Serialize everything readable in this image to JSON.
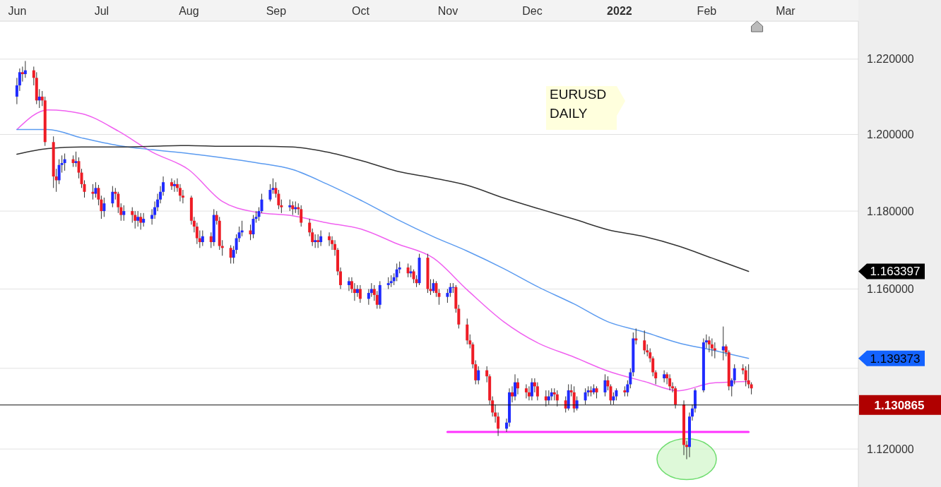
{
  "chart_data": {
    "type": "candlestick",
    "log": "y",
    "grid": "y",
    "annotations": [
      "EURUSD",
      "DAILY",
      "1.163397",
      "1.139373"
    ],
    "ref_lines": [
      {
        "axis": "y",
        "value": 1.130865,
        "label": "1.130865",
        "color": "#111111"
      }
    ],
    "xlim": [
      "2021-05-26",
      "2022-03-27"
    ],
    "xticks": [
      {
        "value": "2021-06-01",
        "label": "Jun"
      },
      {
        "value": "2021-07-01",
        "label": "Jul"
      },
      {
        "value": "2021-08-01",
        "label": "Aug"
      },
      {
        "value": "2021-09-01",
        "label": "Sep"
      },
      {
        "value": "2021-10-01",
        "label": "Oct"
      },
      {
        "value": "2021-11-01",
        "label": "Nov"
      },
      {
        "value": "2021-12-01",
        "label": "Dec"
      },
      {
        "value": "2022-01-01",
        "label": "2022"
      },
      {
        "value": "2022-02-01",
        "label": "Feb"
      },
      {
        "value": "2022-03-01",
        "label": "Mar"
      }
    ],
    "ylim": [
      1.1107,
      1.2302
    ],
    "yticks": [
      {
        "value": 1.12,
        "label": "1.120000"
      },
      {
        "value": 1.14,
        "label": null
      },
      {
        "value": 1.16,
        "label": "1.160000"
      },
      {
        "value": 1.18,
        "label": "1.180000"
      },
      {
        "value": 1.2,
        "label": "1.200000"
      },
      {
        "value": 1.22,
        "label": "1.220000"
      }
    ],
    "x": [
      "2021-06-01",
      "2021-06-02",
      "2021-06-03",
      "2021-06-04",
      "2021-06-07",
      "2021-06-08",
      "2021-06-09",
      "2021-06-10",
      "2021-06-11",
      "2021-06-14",
      "2021-06-15",
      "2021-06-16",
      "2021-06-17",
      "2021-06-18",
      "2021-06-21",
      "2021-06-22",
      "2021-06-23",
      "2021-06-24",
      "2021-06-25",
      "2021-06-28",
      "2021-06-29",
      "2021-06-30",
      "2021-07-01",
      "2021-07-02",
      "2021-07-05",
      "2021-07-06",
      "2021-07-07",
      "2021-07-08",
      "2021-07-09",
      "2021-07-12",
      "2021-07-13",
      "2021-07-14",
      "2021-07-15",
      "2021-07-16",
      "2021-07-19",
      "2021-07-20",
      "2021-07-21",
      "2021-07-22",
      "2021-07-23",
      "2021-07-26",
      "2021-07-27",
      "2021-07-28",
      "2021-07-29",
      "2021-07-30",
      "2021-08-02",
      "2021-08-03",
      "2021-08-04",
      "2021-08-05",
      "2021-08-06",
      "2021-08-09",
      "2021-08-10",
      "2021-08-11",
      "2021-08-12",
      "2021-08-13",
      "2021-08-16",
      "2021-08-17",
      "2021-08-18",
      "2021-08-19",
      "2021-08-20",
      "2021-08-23",
      "2021-08-24",
      "2021-08-25",
      "2021-08-26",
      "2021-08-27",
      "2021-08-30",
      "2021-08-31",
      "2021-09-01",
      "2021-09-02",
      "2021-09-03",
      "2021-09-06",
      "2021-09-07",
      "2021-09-08",
      "2021-09-09",
      "2021-09-10",
      "2021-09-13",
      "2021-09-14",
      "2021-09-15",
      "2021-09-16",
      "2021-09-17",
      "2021-09-20",
      "2021-09-21",
      "2021-09-22",
      "2021-09-23",
      "2021-09-24",
      "2021-09-27",
      "2021-09-28",
      "2021-09-29",
      "2021-09-30",
      "2021-10-01",
      "2021-10-04",
      "2021-10-05",
      "2021-10-06",
      "2021-10-07",
      "2021-10-08",
      "2021-10-11",
      "2021-10-12",
      "2021-10-13",
      "2021-10-14",
      "2021-10-15",
      "2021-10-18",
      "2021-10-19",
      "2021-10-20",
      "2021-10-21",
      "2021-10-22",
      "2021-10-25",
      "2021-10-26",
      "2021-10-27",
      "2021-10-28",
      "2021-10-29",
      "2021-11-01",
      "2021-11-02",
      "2021-11-03",
      "2021-11-04",
      "2021-11-05",
      "2021-11-08",
      "2021-11-09",
      "2021-11-10",
      "2021-11-11",
      "2021-11-12",
      "2021-11-15",
      "2021-11-16",
      "2021-11-17",
      "2021-11-18",
      "2021-11-19",
      "2021-11-22",
      "2021-11-23",
      "2021-11-24",
      "2021-11-25",
      "2021-11-26",
      "2021-11-29",
      "2021-11-30",
      "2021-12-01",
      "2021-12-02",
      "2021-12-03",
      "2021-12-06",
      "2021-12-07",
      "2021-12-08",
      "2021-12-09",
      "2021-12-10",
      "2021-12-13",
      "2021-12-14",
      "2021-12-15",
      "2021-12-16",
      "2021-12-17",
      "2021-12-20",
      "2021-12-21",
      "2021-12-22",
      "2021-12-23",
      "2021-12-24",
      "2021-12-27",
      "2021-12-28",
      "2021-12-29",
      "2021-12-30",
      "2021-12-31",
      "2022-01-03",
      "2022-01-04",
      "2022-01-05",
      "2022-01-06",
      "2022-01-07",
      "2022-01-10",
      "2022-01-11",
      "2022-01-12",
      "2022-01-13",
      "2022-01-14",
      "2022-01-17",
      "2022-01-18",
      "2022-01-19",
      "2022-01-20",
      "2022-01-21",
      "2022-01-24",
      "2022-01-25",
      "2022-01-26",
      "2022-01-27",
      "2022-01-28",
      "2022-01-31",
      "2022-02-01",
      "2022-02-02",
      "2022-02-03",
      "2022-02-04",
      "2022-02-07",
      "2022-02-08",
      "2022-02-09",
      "2022-02-10",
      "2022-02-11",
      "2022-02-14",
      "2022-02-15",
      "2022-02-16",
      "2022-02-17"
    ],
    "ohlc": [
      [
        1.21,
        1.215,
        1.208,
        1.213
      ],
      [
        1.213,
        1.2175,
        1.2115,
        1.2165
      ],
      [
        1.2165,
        1.218,
        1.214,
        1.216
      ],
      [
        1.216,
        1.2195,
        1.215,
        1.217
      ],
      [
        1.217,
        1.218,
        1.213,
        1.215
      ],
      [
        1.215,
        1.2165,
        1.208,
        1.209
      ],
      [
        1.209,
        1.212,
        1.207,
        1.21
      ],
      [
        1.21,
        1.2115,
        1.2075,
        1.209
      ],
      [
        1.209,
        1.21,
        1.197,
        1.198
      ],
      [
        1.198,
        1.1995,
        1.186,
        1.189
      ],
      [
        1.189,
        1.191,
        1.185,
        1.188
      ],
      [
        1.188,
        1.1935,
        1.187,
        1.192
      ],
      [
        1.192,
        1.1945,
        1.19,
        1.1925
      ],
      [
        1.1925,
        1.195,
        1.1905,
        1.1935
      ],
      [
        1.1935,
        1.1945,
        1.1915,
        1.1925
      ],
      [
        1.1925,
        1.1955,
        1.1915,
        1.193
      ],
      [
        1.193,
        1.194,
        1.1885,
        1.19
      ],
      [
        1.19,
        1.191,
        1.186,
        1.187
      ],
      [
        1.187,
        1.188,
        1.1835,
        1.185
      ],
      [
        1.185,
        1.187,
        1.183,
        1.1845
      ],
      [
        1.1845,
        1.1875,
        1.1835,
        1.186
      ],
      [
        1.186,
        1.1868,
        1.1815,
        1.183
      ],
      [
        1.183,
        1.184,
        1.178,
        1.18
      ],
      [
        1.18,
        1.1835,
        1.1785,
        1.182
      ],
      [
        1.182,
        1.1865,
        1.181,
        1.185
      ],
      [
        1.185,
        1.186,
        1.183,
        1.1845
      ],
      [
        1.1845,
        1.185,
        1.1795,
        1.181
      ],
      [
        1.181,
        1.182,
        1.1775,
        1.179
      ],
      [
        1.179,
        1.1815,
        1.1775,
        1.18
      ],
      [
        1.18,
        1.181,
        1.177,
        1.179
      ],
      [
        1.179,
        1.18,
        1.1755,
        1.1775
      ],
      [
        1.1775,
        1.18,
        1.176,
        1.1785
      ],
      [
        1.1785,
        1.1795,
        1.1752,
        1.177
      ],
      [
        1.177,
        1.1795,
        1.176,
        1.178
      ],
      [
        1.178,
        1.1805,
        1.1765,
        1.179
      ],
      [
        1.179,
        1.1825,
        1.178,
        1.181
      ],
      [
        1.181,
        1.1845,
        1.18,
        1.183
      ],
      [
        1.183,
        1.1865,
        1.182,
        1.185
      ],
      [
        1.185,
        1.189,
        1.184,
        1.1875
      ],
      [
        1.1875,
        1.1885,
        1.1855,
        1.1865
      ],
      [
        1.1865,
        1.188,
        1.185,
        1.187
      ],
      [
        1.187,
        1.1885,
        1.185,
        1.186
      ],
      [
        1.186,
        1.187,
        1.1825,
        1.184
      ],
      [
        1.184,
        1.1855,
        1.182,
        1.1835
      ],
      [
        1.1835,
        1.184,
        1.1765,
        1.1775
      ],
      [
        1.1775,
        1.1785,
        1.1745,
        1.176
      ],
      [
        1.176,
        1.177,
        1.1715,
        1.173
      ],
      [
        1.173,
        1.175,
        1.1705,
        1.172
      ],
      [
        1.172,
        1.175,
        1.171,
        1.1735
      ],
      [
        1.1735,
        1.1745,
        1.1705,
        1.172
      ],
      [
        1.172,
        1.1805,
        1.171,
        1.179
      ],
      [
        1.179,
        1.18,
        1.1765,
        1.1775
      ],
      [
        1.1775,
        1.1785,
        1.17,
        1.171
      ],
      [
        1.171,
        1.1725,
        1.1685,
        1.1705
      ],
      [
        1.1705,
        1.1712,
        1.1665,
        1.168
      ],
      [
        1.168,
        1.171,
        1.1665,
        1.17
      ],
      [
        1.17,
        1.174,
        1.169,
        1.173
      ],
      [
        1.173,
        1.176,
        1.172,
        1.1745
      ],
      [
        1.1745,
        1.1775,
        1.1735,
        1.175
      ],
      [
        1.175,
        1.1765,
        1.1725,
        1.174
      ],
      [
        1.174,
        1.179,
        1.173,
        1.178
      ],
      [
        1.178,
        1.18,
        1.177,
        1.1785
      ],
      [
        1.1785,
        1.181,
        1.1775,
        1.18
      ],
      [
        1.18,
        1.1845,
        1.1795,
        1.183
      ],
      [
        1.183,
        1.187,
        1.1825,
        1.1855
      ],
      [
        1.1855,
        1.1885,
        1.1845,
        1.186
      ],
      [
        1.186,
        1.1875,
        1.1835,
        1.1845
      ],
      [
        1.1845,
        1.1855,
        1.1805,
        1.1815
      ],
      [
        1.1815,
        1.183,
        1.1795,
        1.181
      ],
      [
        1.181,
        1.183,
        1.18,
        1.1815
      ],
      [
        1.1815,
        1.1825,
        1.179,
        1.1805
      ],
      [
        1.1805,
        1.1825,
        1.1795,
        1.181
      ],
      [
        1.181,
        1.182,
        1.179,
        1.1805
      ],
      [
        1.1805,
        1.1815,
        1.176,
        1.177
      ],
      [
        1.177,
        1.178,
        1.1735,
        1.1745
      ],
      [
        1.1745,
        1.1755,
        1.171,
        1.172
      ],
      [
        1.172,
        1.174,
        1.1705,
        1.1725
      ],
      [
        1.1725,
        1.174,
        1.1705,
        1.172
      ],
      [
        1.172,
        1.175,
        1.171,
        1.1735
      ],
      [
        1.1735,
        1.1745,
        1.171,
        1.1725
      ],
      [
        1.1725,
        1.1735,
        1.17,
        1.1715
      ],
      [
        1.1715,
        1.1725,
        1.1685,
        1.17
      ],
      [
        1.17,
        1.1705,
        1.1635,
        1.1645
      ],
      [
        1.1645,
        1.1655,
        1.16,
        1.161
      ],
      [
        1.161,
        1.163,
        1.1595,
        1.162
      ],
      [
        1.162,
        1.163,
        1.159,
        1.16
      ],
      [
        1.16,
        1.1615,
        1.157,
        1.159
      ],
      [
        1.159,
        1.161,
        1.158,
        1.16
      ],
      [
        1.16,
        1.161,
        1.1565,
        1.1575
      ],
      [
        1.1575,
        1.16,
        1.156,
        1.159
      ],
      [
        1.159,
        1.1615,
        1.158,
        1.16
      ],
      [
        1.16,
        1.161,
        1.157,
        1.1585
      ],
      [
        1.1585,
        1.1595,
        1.155,
        1.156
      ],
      [
        1.156,
        1.162,
        1.155,
        1.161
      ],
      [
        1.161,
        1.163,
        1.16,
        1.1615
      ],
      [
        1.1615,
        1.1635,
        1.1605,
        1.162
      ],
      [
        1.162,
        1.164,
        1.161,
        1.163
      ],
      [
        1.163,
        1.1665,
        1.162,
        1.165
      ],
      [
        1.165,
        1.167,
        1.164,
        1.1655
      ],
      [
        1.1655,
        1.1665,
        1.163,
        1.164
      ],
      [
        1.164,
        1.166,
        1.163,
        1.1645
      ],
      [
        1.1645,
        1.165,
        1.1615,
        1.1625
      ],
      [
        1.1625,
        1.1635,
        1.1605,
        1.1615
      ],
      [
        1.1615,
        1.169,
        1.161,
        1.168
      ],
      [
        1.168,
        1.169,
        1.159,
        1.16
      ],
      [
        1.16,
        1.1625,
        1.1585,
        1.1595
      ],
      [
        1.1595,
        1.1625,
        1.159,
        1.1615
      ],
      [
        1.1615,
        1.162,
        1.158,
        1.159
      ],
      [
        1.159,
        1.16,
        1.156,
        1.158
      ],
      [
        1.158,
        1.16,
        1.1565,
        1.159
      ],
      [
        1.159,
        1.1615,
        1.158,
        1.1605
      ],
      [
        1.1605,
        1.1615,
        1.159,
        1.1605
      ],
      [
        1.1605,
        1.161,
        1.154,
        1.155
      ],
      [
        1.155,
        1.156,
        1.15,
        1.151
      ],
      [
        1.151,
        1.1525,
        1.146,
        1.147
      ],
      [
        1.147,
        1.1485,
        1.145,
        1.146
      ],
      [
        1.146,
        1.1465,
        1.14,
        1.141
      ],
      [
        1.141,
        1.142,
        1.136,
        1.137
      ],
      [
        1.137,
        1.1405,
        1.136,
        1.1395
      ],
      [
        1.1395,
        1.1405,
        1.1365,
        1.138
      ],
      [
        1.138,
        1.1385,
        1.131,
        1.132
      ],
      [
        1.132,
        1.133,
        1.128,
        1.129
      ],
      [
        1.129,
        1.131,
        1.1265,
        1.128
      ],
      [
        1.128,
        1.129,
        1.1232,
        1.125
      ],
      [
        1.125,
        1.1275,
        1.1242,
        1.1265
      ],
      [
        1.1265,
        1.135,
        1.1255,
        1.134
      ],
      [
        1.134,
        1.1355,
        1.1315,
        1.133
      ],
      [
        1.133,
        1.1385,
        1.132,
        1.1365
      ],
      [
        1.1365,
        1.1375,
        1.1335,
        1.135
      ],
      [
        1.135,
        1.136,
        1.1325,
        1.134
      ],
      [
        1.134,
        1.1355,
        1.132,
        1.133
      ],
      [
        1.133,
        1.1375,
        1.132,
        1.1365
      ],
      [
        1.1365,
        1.1375,
        1.134,
        1.1355
      ],
      [
        1.1355,
        1.1365,
        1.132,
        1.133
      ],
      [
        1.133,
        1.1345,
        1.1305,
        1.132
      ],
      [
        1.132,
        1.1345,
        1.131,
        1.133
      ],
      [
        1.133,
        1.135,
        1.132,
        1.134
      ],
      [
        1.134,
        1.135,
        1.132,
        1.1335
      ],
      [
        1.1335,
        1.1345,
        1.1305,
        1.132
      ],
      [
        1.132,
        1.133,
        1.129,
        1.13
      ],
      [
        1.13,
        1.136,
        1.1295,
        1.1345
      ],
      [
        1.1345,
        1.136,
        1.133,
        1.134
      ],
      [
        1.134,
        1.1355,
        1.129,
        1.13
      ],
      [
        1.13,
        1.133,
        1.1295,
        1.132
      ],
      [
        1.132,
        1.135,
        1.131,
        1.134
      ],
      [
        1.134,
        1.1355,
        1.133,
        1.1345
      ],
      [
        1.1345,
        1.1355,
        1.133,
        1.134
      ],
      [
        1.134,
        1.136,
        1.1335,
        1.135
      ],
      [
        1.135,
        1.1355,
        1.1325,
        1.134
      ],
      [
        1.134,
        1.1385,
        1.133,
        1.137
      ],
      [
        1.137,
        1.138,
        1.1345,
        1.1355
      ],
      [
        1.1355,
        1.136,
        1.131,
        1.132
      ],
      [
        1.132,
        1.134,
        1.131,
        1.133
      ],
      [
        1.133,
        1.135,
        1.132,
        1.1345
      ],
      [
        1.1345,
        1.1355,
        1.133,
        1.134
      ],
      [
        1.134,
        1.137,
        1.133,
        1.136
      ],
      [
        1.136,
        1.14,
        1.135,
        1.139
      ],
      [
        1.139,
        1.149,
        1.138,
        1.1475
      ],
      [
        1.1475,
        1.15,
        1.146,
        1.147
      ],
      [
        1.147,
        1.1495,
        1.1435,
        1.1445
      ],
      [
        1.1445,
        1.146,
        1.143,
        1.144
      ],
      [
        1.144,
        1.145,
        1.1415,
        1.1425
      ],
      [
        1.1425,
        1.143,
        1.138,
        1.139
      ],
      [
        1.139,
        1.1395,
        1.136,
        1.1375
      ],
      [
        1.1375,
        1.1395,
        1.1365,
        1.1385
      ],
      [
        1.1385,
        1.139,
        1.136,
        1.1375
      ],
      [
        1.1375,
        1.1385,
        1.1345,
        1.1355
      ],
      [
        1.1355,
        1.1365,
        1.134,
        1.135
      ],
      [
        1.135,
        1.1355,
        1.13,
        1.131
      ],
      [
        1.131,
        1.132,
        1.1185,
        1.121
      ],
      [
        1.121,
        1.122,
        1.1175,
        1.1205
      ],
      [
        1.1205,
        1.129,
        1.118,
        1.128
      ],
      [
        1.128,
        1.131,
        1.127,
        1.13
      ],
      [
        1.13,
        1.135,
        1.129,
        1.1345
      ],
      [
        1.1345,
        1.1475,
        1.134,
        1.1465
      ],
      [
        1.1465,
        1.1485,
        1.145,
        1.147
      ],
      [
        1.147,
        1.148,
        1.144,
        1.146
      ],
      [
        1.146,
        1.1475,
        1.143,
        1.145
      ],
      [
        1.145,
        1.1465,
        1.1425,
        1.1445
      ],
      [
        1.1445,
        1.1505,
        1.142,
        1.1455
      ],
      [
        1.1455,
        1.146,
        1.143,
        1.144
      ],
      [
        1.144,
        1.1445,
        1.1345,
        1.1355
      ],
      [
        1.1355,
        1.1375,
        1.133,
        1.137
      ],
      [
        1.137,
        1.141,
        1.136,
        1.14
      ],
      [
        1.14,
        1.141,
        1.1385,
        1.1395
      ],
      [
        1.1395,
        1.1405,
        1.1355,
        1.137
      ],
      [
        1.137,
        1.141,
        1.135,
        1.136
      ],
      [
        1.136,
        1.1365,
        1.1335,
        1.135
      ]
    ],
    "series": [
      {
        "type": "line",
        "color": "#f060f0",
        "x": [
          "2021-06-01",
          "2021-06-12",
          "2021-06-24",
          "2021-07-07",
          "2021-07-19",
          "2021-08-01",
          "2021-08-13",
          "2021-08-25",
          "2021-09-07",
          "2021-09-19",
          "2021-10-02",
          "2021-10-14",
          "2021-10-27",
          "2021-11-08",
          "2021-11-21",
          "2021-12-03",
          "2021-12-16",
          "2021-12-28",
          "2022-01-10",
          "2022-01-22",
          "2022-02-03",
          "2022-02-16"
        ],
        "values": [
          1.2013,
          1.2065,
          1.2055,
          1.2009,
          1.1954,
          1.1908,
          1.1825,
          1.1797,
          1.1788,
          1.177,
          1.1752,
          1.1716,
          1.1679,
          1.1598,
          1.1517,
          1.1464,
          1.1428,
          1.1393,
          1.1367,
          1.1344,
          1.1363,
          1.1367
        ]
      },
      {
        "type": "line",
        "color": "#5b9bf0",
        "x": [
          "2021-06-01",
          "2021-06-12",
          "2021-06-24",
          "2021-07-07",
          "2021-07-19",
          "2021-08-01",
          "2021-08-13",
          "2021-08-25",
          "2021-09-07",
          "2021-09-19",
          "2021-10-02",
          "2021-10-14",
          "2021-10-27",
          "2021-11-08",
          "2021-11-21",
          "2021-12-03",
          "2021-12-16",
          "2021-12-28",
          "2022-01-10",
          "2022-01-22",
          "2022-02-03",
          "2022-02-16"
        ],
        "values": [
          1.2013,
          1.2013,
          1.1991,
          1.1971,
          1.196,
          1.195,
          1.1939,
          1.1926,
          1.1908,
          1.1871,
          1.1825,
          1.1779,
          1.1734,
          1.1697,
          1.1652,
          1.1606,
          1.1562,
          1.1517,
          1.1491,
          1.1464,
          1.1446,
          1.1425
        ]
      },
      {
        "type": "line",
        "color": "#333333",
        "x": [
          "2021-06-01",
          "2021-06-12",
          "2021-06-24",
          "2021-07-07",
          "2021-07-19",
          "2021-08-01",
          "2021-08-13",
          "2021-08-25",
          "2021-09-07",
          "2021-09-19",
          "2021-10-02",
          "2021-10-14",
          "2021-10-27",
          "2021-11-08",
          "2021-11-21",
          "2021-12-03",
          "2021-12-16",
          "2021-12-28",
          "2022-01-10",
          "2022-01-22",
          "2022-02-03",
          "2022-02-16"
        ],
        "values": [
          1.1948,
          1.1963,
          1.1967,
          1.1967,
          1.1969,
          1.1971,
          1.1969,
          1.1969,
          1.1967,
          1.1954,
          1.193,
          1.1904,
          1.1886,
          1.1867,
          1.1834,
          1.1807,
          1.1779,
          1.1752,
          1.1734,
          1.171,
          1.1679,
          1.1645
        ]
      },
      {
        "type": "line",
        "color": "#ff33ff",
        "x": [
          "2021-11-01",
          "2022-02-16"
        ],
        "values": [
          1.1242,
          1.1242
        ]
      }
    ]
  }
}
